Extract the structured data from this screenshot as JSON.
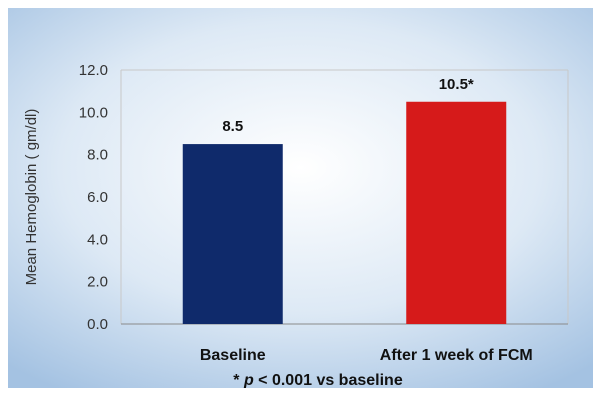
{
  "chart_data": {
    "type": "bar",
    "categories": [
      "Baseline",
      "After 1 week of FCM"
    ],
    "values": [
      8.5,
      10.5
    ],
    "data_labels": [
      "8.5",
      "10.5*"
    ],
    "colors": [
      "#0f2a6b",
      "#d61a1a"
    ],
    "ylabel": "Mean Hemoglobin ( gm/dl)",
    "xlabel": "",
    "title": "",
    "ylim": [
      0,
      12
    ],
    "yticks": [
      "0.0",
      "2.0",
      "4.0",
      "6.0",
      "8.0",
      "10.0",
      "12.0"
    ],
    "grid": false,
    "legend": "none",
    "footnote": {
      "prefix": "* ",
      "italic": "p",
      "suffix": " < 0.001 vs baseline"
    }
  }
}
